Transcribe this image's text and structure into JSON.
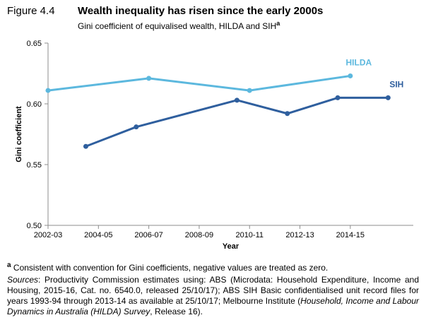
{
  "figure": {
    "label": "Figure 4.4",
    "title": "Wealth inequality has risen since the early 2000s",
    "subtitle": "Gini coefficient of equivalised wealth, HILDA and SIH",
    "subtitle_sup": "a"
  },
  "chart_data": {
    "type": "line",
    "title": "Wealth inequality has risen since the early 2000s",
    "subtitle": "Gini coefficient of equivalised wealth, HILDA and SIH",
    "xlabel": "Year",
    "ylabel": "Gini coefficient",
    "ylim": [
      0.5,
      0.65
    ],
    "yticks": [
      0.5,
      0.55,
      0.6,
      0.65
    ],
    "ytick_labels": [
      "0.50",
      "0.55",
      "0.60",
      "0.65"
    ],
    "xlim": [
      2002,
      2016.5
    ],
    "xticks": [
      2002,
      2004,
      2006,
      2008,
      2010,
      2012,
      2014
    ],
    "xtick_labels": [
      "2002-03",
      "2004-05",
      "2006-07",
      "2008-09",
      "2010-11",
      "2012-13",
      "2014-15"
    ],
    "grid": false,
    "series": [
      {
        "name": "HILDA",
        "color": "#5cb8de",
        "x": [
          2002,
          2006,
          2010,
          2014
        ],
        "values": [
          0.611,
          0.621,
          0.611,
          0.623
        ]
      },
      {
        "name": "SIH",
        "color": "#2f5f9e",
        "x": [
          2003.5,
          2005.5,
          2009.5,
          2011.5,
          2013.5,
          2015.5
        ],
        "values": [
          0.565,
          0.581,
          0.603,
          0.592,
          0.605,
          0.605
        ]
      }
    ]
  },
  "note": {
    "marker": "a",
    "text": " Consistent with convention for Gini coefficients, negative values are treated as zero."
  },
  "sources": {
    "label": "Sources",
    "part1": ": Productivity Commission estimates using: ABS (Microdata: Household Expenditure, Income and Housing, 2015-16, Cat. no. 6540.0, released 25/10/17); ABS SIH Basic confidentialised unit record files for years 1993-94 through 2013-14 as available at 25/10/17; Melbourne Institute (",
    "italic": "Household, Income and Labour Dynamics in Australia (HILDA) Survey",
    "part2": ", Release 16)."
  }
}
